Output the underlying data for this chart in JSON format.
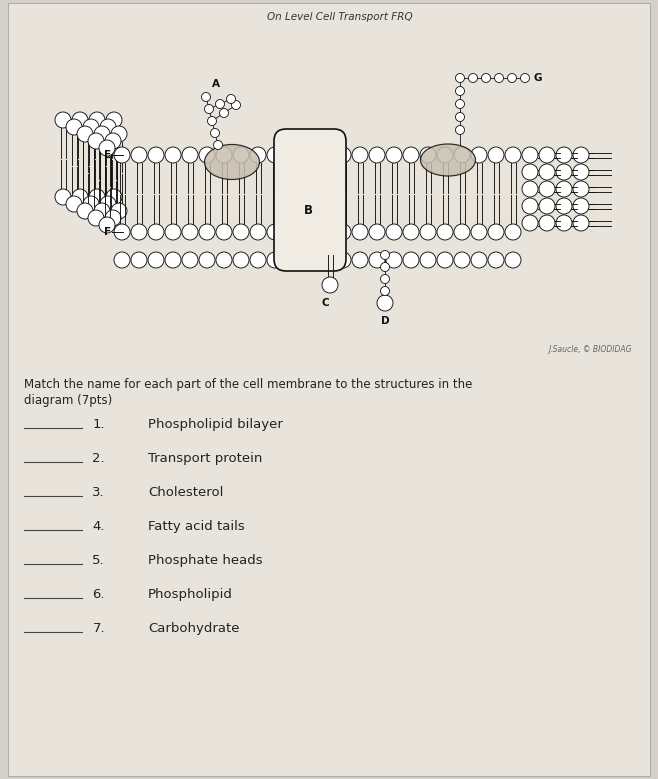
{
  "title": "On Level Cell Transport FRQ",
  "bg_color": "#d4cfc8",
  "paper_color": "#e8e4dc",
  "text_color": "#1a1a1a",
  "dark_color": "#222222",
  "match_instruction_line1": "Match the name for each part of the cell membrane to the structures in the",
  "match_instruction_line2": "diagram (7pts)",
  "items": [
    {
      "number": "1.",
      "label": "Phospholipid bilayer"
    },
    {
      "number": "2.",
      "label": "Transport protein"
    },
    {
      "number": "3.",
      "label": "Cholesterol"
    },
    {
      "number": "4.",
      "label": "Fatty acid tails"
    },
    {
      "number": "5.",
      "label": "Phosphate heads"
    },
    {
      "number": "6.",
      "label": "Phospholipid"
    },
    {
      "number": "7.",
      "label": "Carbohydrate"
    }
  ],
  "credit": "J.Saucle, © BIODIDAG",
  "fig_width": 6.58,
  "fig_height": 7.79,
  "dpi": 100
}
